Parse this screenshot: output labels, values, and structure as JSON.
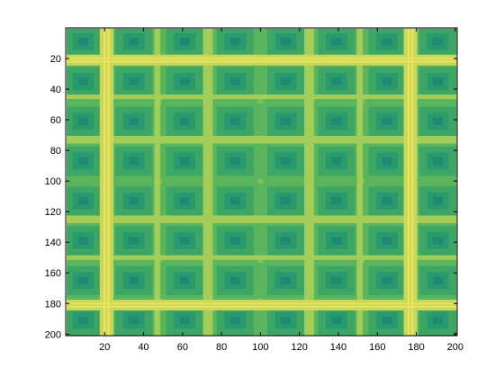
{
  "chart_data": {
    "type": "heatmap",
    "title": "",
    "xlabel": "",
    "ylabel": "",
    "xlim": [
      0,
      201
    ],
    "ylim": [
      201,
      0
    ],
    "y_reversed": true,
    "grid": false,
    "legend": "none",
    "xticks": [
      20,
      40,
      60,
      80,
      100,
      120,
      140,
      160,
      180,
      200
    ],
    "yticks": [
      20,
      40,
      60,
      80,
      100,
      120,
      140,
      160,
      180,
      200
    ],
    "xtick_labels": [
      "20",
      "40",
      "60",
      "80",
      "100",
      "120",
      "140",
      "160",
      "180",
      "200"
    ],
    "ytick_labels": [
      "20",
      "40",
      "60",
      "80",
      "100",
      "120",
      "140",
      "160",
      "180",
      "200"
    ],
    "colormap": [
      "#1f8a72",
      "#29996e",
      "#3da664",
      "#5ab55c",
      "#7cc256",
      "#a2cd58",
      "#c8d85a",
      "#eee45c"
    ],
    "pattern": {
      "block_centers_x": [
        9,
        35,
        61,
        87,
        113,
        139,
        165,
        191
      ],
      "block_centers_y": [
        9,
        35,
        61,
        87,
        113,
        139,
        165,
        191
      ],
      "cell_size": 1,
      "bright_lines_x": [
        20,
        22,
        176,
        178
      ],
      "bright_lines_y": [
        20,
        22,
        180,
        182
      ],
      "mid_lines_x": [
        47,
        72,
        74,
        124,
        126,
        151
      ],
      "mid_lines_y": [
        45,
        72,
        74,
        124,
        126,
        150
      ]
    }
  }
}
